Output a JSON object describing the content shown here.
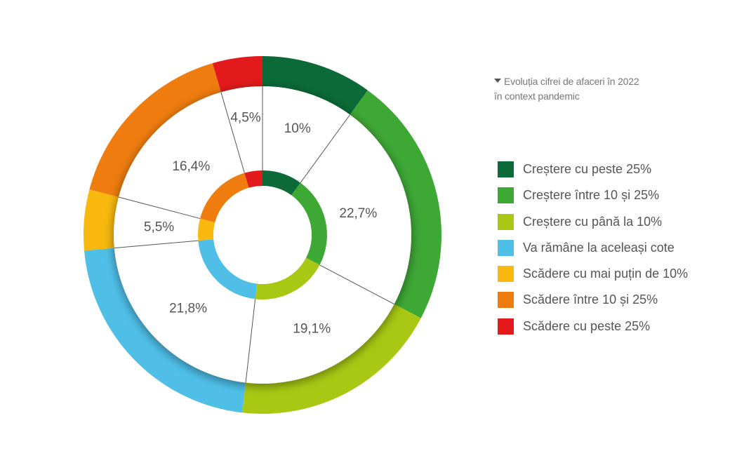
{
  "caption": {
    "line1": "Evoluția cifrei de afaceri în 2022",
    "line2": "în context pandemic"
  },
  "chart_data": {
    "type": "donut",
    "categories": [
      "Creștere cu peste 25%",
      "Creștere între 10 și 25%",
      "Creștere cu până la 10%",
      "Va rămâne la aceleași cote",
      "Scădere cu mai puțin de 10%",
      "Scădere între 10 și 25%",
      "Scădere cu peste 25%"
    ],
    "values": [
      10,
      22.7,
      19.1,
      21.8,
      5.5,
      16.4,
      4.5
    ],
    "value_labels": [
      "10%",
      "22,7%",
      "19,1%",
      "21,8%",
      "5,5%",
      "16,4%",
      "4,5%"
    ],
    "colors": [
      "#0b6a38",
      "#3ea835",
      "#a8c813",
      "#4fbfe8",
      "#f8b80d",
      "#ee7c0e",
      "#e31a1c"
    ],
    "legend_position": "right"
  }
}
